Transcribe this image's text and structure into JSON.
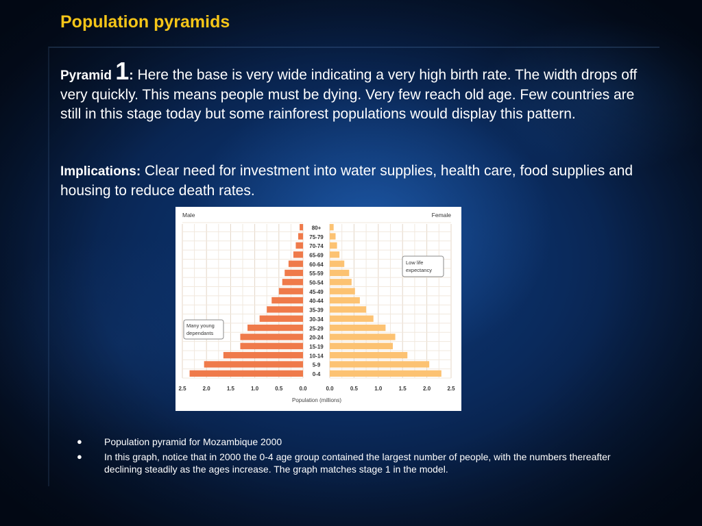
{
  "slide": {
    "title": "Population pyramids"
  },
  "paragraph1": {
    "lead": "Pyramid ",
    "number": "1",
    "colon": ":",
    "text": " Here the base is very wide indicating a very high birth rate. The width drops off very quickly. This means people must be dying. Very few reach old age. Few countries are still in this stage today but some rainforest populations would display this pattern."
  },
  "paragraph2": {
    "lead": "Implications:",
    "text": " Clear need for investment into water supplies, health care, food supplies and housing to reduce death rates."
  },
  "bullets": [
    "Population pyramid for Mozambique 2000",
    "In this graph, notice that in 2000 the 0-4 age group contained the largest number of people, with the numbers thereafter declining steadily as the ages increase. The graph matches stage 1 in the model."
  ],
  "chart_data": {
    "type": "bar",
    "orientation": "horizontal-pyramid",
    "title": "",
    "xlabel": "Population (millions)",
    "ylabel": "",
    "categories": [
      "0-4",
      "5-9",
      "10-14",
      "15-19",
      "20-24",
      "25-29",
      "30-34",
      "35-39",
      "40-44",
      "45-49",
      "50-54",
      "55-59",
      "60-64",
      "65-69",
      "70-74",
      "75-79",
      "80+"
    ],
    "series": [
      {
        "name": "Male",
        "color": "#ef7a4a",
        "values": [
          2.35,
          2.05,
          1.65,
          1.3,
          1.3,
          1.15,
          0.9,
          0.75,
          0.65,
          0.5,
          0.43,
          0.38,
          0.3,
          0.2,
          0.15,
          0.1,
          0.07
        ]
      },
      {
        "name": "Female",
        "color": "#fcc272",
        "values": [
          2.3,
          2.05,
          1.6,
          1.3,
          1.35,
          1.15,
          0.9,
          0.75,
          0.62,
          0.52,
          0.45,
          0.4,
          0.3,
          0.2,
          0.15,
          0.12,
          0.08
        ]
      }
    ],
    "xlim": [
      0,
      2.5
    ],
    "xticks": [
      "2.5",
      "2.0",
      "1.5",
      "1.0",
      "0.5",
      "0.0",
      "0.0",
      "0.5",
      "1.0",
      "1.5",
      "2.0",
      "2.5"
    ],
    "grid": true,
    "legend": "top-left / top-right",
    "annotations": [
      {
        "text": [
          "Many young",
          "dependants"
        ]
      },
      {
        "text": [
          "Low life",
          "expectancy"
        ]
      }
    ]
  }
}
